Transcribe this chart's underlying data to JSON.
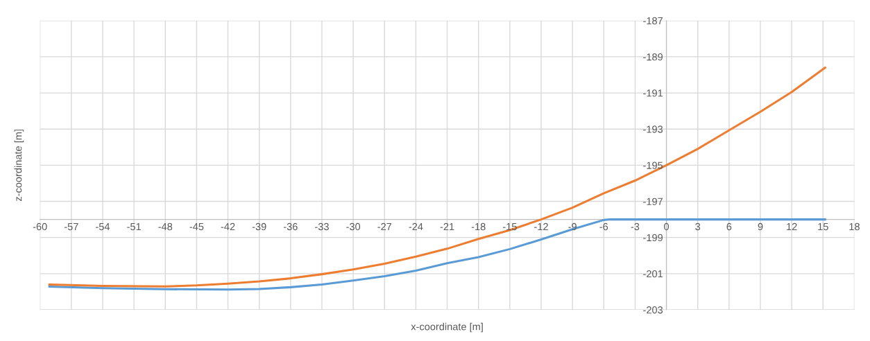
{
  "chart_data": {
    "type": "line",
    "xlabel": "x-coordinate [m]",
    "ylabel": "z-coordinate [m]",
    "xlim": [
      -60,
      18
    ],
    "xticks": [
      -60,
      -57,
      -54,
      -51,
      -48,
      -45,
      -42,
      -39,
      -36,
      -33,
      -30,
      -27,
      -24,
      -21,
      -18,
      -15,
      -12,
      -9,
      -6,
      -3,
      0,
      3,
      6,
      9,
      12,
      15,
      18
    ],
    "ylim": [
      -203,
      -187
    ],
    "yticks": [
      -203,
      -201,
      -199,
      -197,
      -195,
      -193,
      -191,
      -189,
      -187
    ],
    "grid": true,
    "marker": "none",
    "line_style": "solid",
    "series": [
      {
        "color": "#5b9bd5",
        "x": [
          -59.1,
          -54,
          -48,
          -42,
          -39,
          -36,
          -33,
          -30,
          -27,
          -24,
          -21,
          -18,
          -15,
          -12,
          -9,
          -6,
          -5.4,
          0,
          15.2
        ],
        "values": [
          -201.72,
          -201.8,
          -201.86,
          -201.88,
          -201.85,
          -201.75,
          -201.6,
          -201.38,
          -201.14,
          -200.83,
          -200.42,
          -200.09,
          -199.64,
          -199.11,
          -198.54,
          -198.03,
          -198.0,
          -198.0,
          -198.0
        ]
      },
      {
        "color": "#ed7d31",
        "x": [
          -59.1,
          -54,
          -48,
          -45,
          -42,
          -39,
          -36,
          -33,
          -30,
          -27,
          -24,
          -21,
          -18,
          -15,
          -12,
          -9,
          -6,
          -3,
          0,
          3,
          6,
          9,
          12,
          15.2
        ],
        "values": [
          -201.6,
          -201.68,
          -201.71,
          -201.65,
          -201.55,
          -201.43,
          -201.26,
          -201.03,
          -200.77,
          -200.45,
          -200.06,
          -199.62,
          -199.08,
          -198.59,
          -198.0,
          -197.35,
          -196.55,
          -195.85,
          -195.0,
          -194.1,
          -193.07,
          -192.04,
          -190.95,
          -189.6
        ]
      }
    ]
  }
}
